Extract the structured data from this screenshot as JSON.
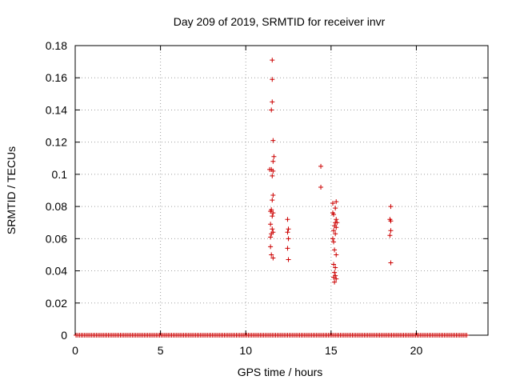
{
  "chart_data": {
    "type": "scatter",
    "title": "Day 209 of 2019, SRMTID for receiver invr",
    "xlabel": "GPS time / hours",
    "ylabel": "SRMTID / TECUs",
    "xlim": [
      0,
      24.2
    ],
    "ylim": [
      0,
      0.18
    ],
    "grid": true,
    "marker": "+",
    "marker_color": "#cc0000",
    "x_ticks": [
      0,
      5,
      10,
      15,
      20
    ],
    "y_ticks": [
      0,
      0.02,
      0.04,
      0.06,
      0.08,
      0.1,
      0.12,
      0.14,
      0.16,
      0.18
    ],
    "x_tick_labels": [
      "0",
      "5",
      "10",
      "15",
      "20"
    ],
    "y_tick_labels": [
      "0",
      "0.02",
      "0.04",
      "0.06",
      "0.08",
      "0.1",
      "0.12",
      "0.14",
      "0.16",
      "0.18"
    ],
    "zero_band": {
      "x_start": 0.05,
      "x_end": 23.0,
      "step": 0.1,
      "y": 0
    },
    "points": [
      [
        11.55,
        0.171
      ],
      [
        11.55,
        0.159
      ],
      [
        11.55,
        0.145
      ],
      [
        11.5,
        0.14
      ],
      [
        11.6,
        0.121
      ],
      [
        11.65,
        0.111
      ],
      [
        11.6,
        0.108
      ],
      [
        11.4,
        0.103
      ],
      [
        11.5,
        0.103
      ],
      [
        11.6,
        0.102
      ],
      [
        11.55,
        0.099
      ],
      [
        11.6,
        0.087
      ],
      [
        11.55,
        0.084
      ],
      [
        11.5,
        0.078
      ],
      [
        11.45,
        0.077
      ],
      [
        11.6,
        0.076
      ],
      [
        11.55,
        0.074
      ],
      [
        11.45,
        0.069
      ],
      [
        11.55,
        0.066
      ],
      [
        11.6,
        0.064
      ],
      [
        11.5,
        0.063
      ],
      [
        11.45,
        0.061
      ],
      [
        11.45,
        0.055
      ],
      [
        11.5,
        0.05
      ],
      [
        11.6,
        0.048
      ],
      [
        12.45,
        0.072
      ],
      [
        12.5,
        0.066
      ],
      [
        12.45,
        0.064
      ],
      [
        12.5,
        0.06
      ],
      [
        12.45,
        0.054
      ],
      [
        12.5,
        0.047
      ],
      [
        14.4,
        0.105
      ],
      [
        14.4,
        0.092
      ],
      [
        15.1,
        0.082
      ],
      [
        15.3,
        0.083
      ],
      [
        15.25,
        0.079
      ],
      [
        15.1,
        0.076
      ],
      [
        15.15,
        0.075
      ],
      [
        15.3,
        0.072
      ],
      [
        15.25,
        0.07
      ],
      [
        15.35,
        0.07
      ],
      [
        15.2,
        0.068
      ],
      [
        15.3,
        0.067
      ],
      [
        15.15,
        0.065
      ],
      [
        15.25,
        0.063
      ],
      [
        15.1,
        0.06
      ],
      [
        15.15,
        0.058
      ],
      [
        15.2,
        0.053
      ],
      [
        15.3,
        0.05
      ],
      [
        15.15,
        0.044
      ],
      [
        15.25,
        0.042
      ],
      [
        15.2,
        0.039
      ],
      [
        15.25,
        0.037
      ],
      [
        15.15,
        0.036
      ],
      [
        15.3,
        0.035
      ],
      [
        15.2,
        0.033
      ],
      [
        18.5,
        0.08
      ],
      [
        18.45,
        0.072
      ],
      [
        18.5,
        0.071
      ],
      [
        18.5,
        0.065
      ],
      [
        18.45,
        0.062
      ],
      [
        18.5,
        0.045
      ]
    ]
  }
}
